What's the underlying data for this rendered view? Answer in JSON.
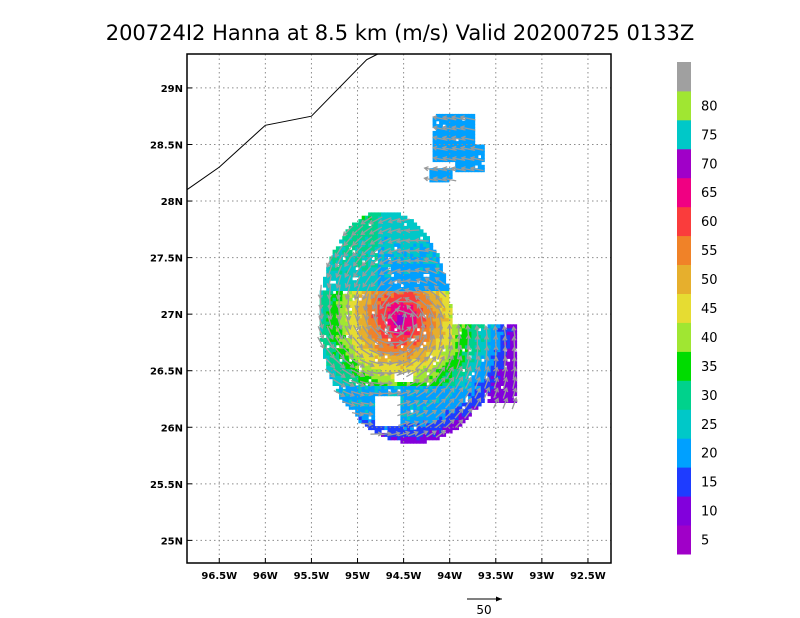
{
  "chart_data": {
    "type": "heatmap",
    "title": "200724I2 Hanna at 8.5 km (m/s) Valid 20200725 0133Z",
    "xlim": [
      -96.85,
      -92.25
    ],
    "ylim": [
      24.8,
      29.3
    ],
    "x_ticks": [
      {
        "value": -96.5,
        "label": "96.5W"
      },
      {
        "value": -96.0,
        "label": "96W"
      },
      {
        "value": -95.5,
        "label": "95.5W"
      },
      {
        "value": -95.0,
        "label": "95W"
      },
      {
        "value": -94.5,
        "label": "94.5W"
      },
      {
        "value": -94.0,
        "label": "94W"
      },
      {
        "value": -93.5,
        "label": "93.5W"
      },
      {
        "value": -93.0,
        "label": "93W"
      },
      {
        "value": -92.5,
        "label": "92.5W"
      }
    ],
    "y_ticks": [
      {
        "value": 25.0,
        "label": "25N"
      },
      {
        "value": 25.5,
        "label": "25.5N"
      },
      {
        "value": 26.0,
        "label": "26N"
      },
      {
        "value": 26.5,
        "label": "26.5N"
      },
      {
        "value": 27.0,
        "label": "27N"
      },
      {
        "value": 27.5,
        "label": "27.5N"
      },
      {
        "value": 28.0,
        "label": "28N"
      },
      {
        "value": 28.5,
        "label": "28.5N"
      },
      {
        "value": 29.0,
        "label": "29N"
      }
    ],
    "grid": true,
    "coastline": [
      [
        -96.85,
        28.1
      ],
      [
        -96.5,
        28.3
      ],
      [
        -96.0,
        28.67
      ],
      [
        -95.5,
        28.75
      ],
      [
        -94.9,
        29.25
      ],
      [
        -94.78,
        29.3
      ]
    ],
    "colorbar": {
      "levels": [
        5,
        10,
        15,
        20,
        25,
        30,
        35,
        40,
        45,
        50,
        55,
        60,
        65,
        70,
        75,
        80
      ],
      "colors": [
        "#a000c8",
        "#8200dc",
        "#1e3cff",
        "#00a0ff",
        "#00c8c8",
        "#00d28c",
        "#00dc00",
        "#a0e632",
        "#e6dc32",
        "#e6af2d",
        "#f08228",
        "#fa3c3c",
        "#f00082",
        "#a000c8",
        "#00c8c8",
        "#a0e632",
        "#a0a0a0"
      ]
    },
    "reference_vector": {
      "value": 50,
      "label": "50"
    },
    "wind_field": {
      "center": [
        -94.55,
        26.95
      ],
      "max_speed": 68,
      "main_extent": {
        "lon": [
          -95.5,
          -93.3
        ],
        "lat": [
          25.85,
          27.95
        ]
      },
      "outer_band": {
        "lon": [
          -94.2,
          -93.6
        ],
        "lat": [
          28.2,
          28.75
        ]
      }
    }
  }
}
